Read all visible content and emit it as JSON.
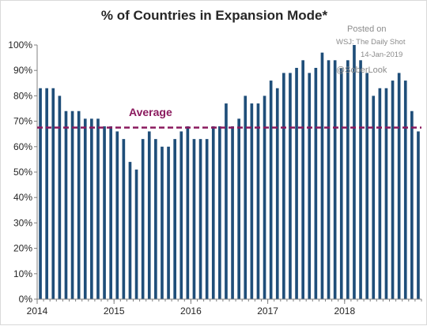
{
  "chart_data": {
    "type": "bar",
    "title": "% of Countries in Expansion Mode*",
    "y_tick_labels": [
      "0%",
      "10%",
      "20%",
      "30%",
      "40%",
      "50%",
      "60%",
      "70%",
      "80%",
      "90%",
      "100%"
    ],
    "x_tick_labels": [
      "2014",
      "2015",
      "2016",
      "2017",
      "2018"
    ],
    "ylim": [
      0,
      100
    ],
    "grid": false,
    "x_start": "2014-01",
    "categories": [
      "2014-01",
      "2014-02",
      "2014-03",
      "2014-04",
      "2014-05",
      "2014-06",
      "2014-07",
      "2014-08",
      "2014-09",
      "2014-10",
      "2014-11",
      "2014-12",
      "2015-01",
      "2015-02",
      "2015-03",
      "2015-04",
      "2015-05",
      "2015-06",
      "2015-07",
      "2015-08",
      "2015-09",
      "2015-10",
      "2015-11",
      "2015-12",
      "2016-01",
      "2016-02",
      "2016-03",
      "2016-04",
      "2016-05",
      "2016-06",
      "2016-07",
      "2016-08",
      "2016-09",
      "2016-10",
      "2016-11",
      "2016-12",
      "2017-01",
      "2017-02",
      "2017-03",
      "2017-04",
      "2017-05",
      "2017-06",
      "2017-07",
      "2017-08",
      "2017-09",
      "2017-10",
      "2017-11",
      "2017-12",
      "2018-01",
      "2018-02",
      "2018-03",
      "2018-04",
      "2018-05",
      "2018-06",
      "2018-07",
      "2018-08",
      "2018-09",
      "2018-10",
      "2018-11",
      "2018-12"
    ],
    "values": [
      83,
      83,
      83,
      80,
      74,
      74,
      74,
      71,
      71,
      71,
      68,
      68,
      66,
      63,
      54,
      51,
      63,
      66,
      63,
      60,
      60,
      63,
      66,
      68,
      63,
      63,
      63,
      68,
      68,
      77,
      68,
      71,
      80,
      77,
      77,
      80,
      86,
      83,
      89,
      89,
      91,
      94,
      89,
      91,
      97,
      94,
      94,
      91,
      94,
      100,
      94,
      89,
      80,
      83,
      83,
      86,
      89,
      86,
      74,
      66
    ],
    "average": {
      "label": "Average",
      "value": 67.5
    },
    "colors": {
      "bar": "#1f4e79",
      "average_line": "#8b1a5e",
      "axis": "#808080"
    }
  },
  "watermark": {
    "posted_on": "Posted on",
    "source": "WSJ: The Daily Shot",
    "date": "14-Jan-2019",
    "handle": "@SoberLook"
  }
}
